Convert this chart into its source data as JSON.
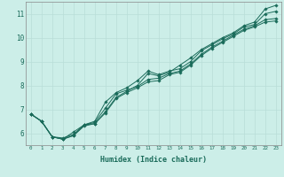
{
  "xlabel": "Humidex (Indice chaleur)",
  "bg_color": "#cceee8",
  "line_color": "#1a6b5a",
  "grid_color": "#b8ddd8",
  "xlim": [
    -0.5,
    23.5
  ],
  "ylim": [
    5.5,
    11.5
  ],
  "xticks": [
    0,
    1,
    2,
    3,
    4,
    5,
    6,
    7,
    8,
    9,
    10,
    11,
    12,
    13,
    14,
    15,
    16,
    17,
    18,
    19,
    20,
    21,
    22,
    23
  ],
  "yticks": [
    6,
    7,
    8,
    9,
    10,
    11
  ],
  "lines": [
    [
      6.8,
      6.5,
      5.85,
      5.75,
      5.9,
      6.35,
      6.4,
      6.9,
      7.5,
      7.75,
      8.0,
      8.5,
      8.4,
      8.55,
      8.85,
      9.15,
      9.5,
      9.75,
      10.0,
      10.2,
      10.5,
      10.65,
      11.2,
      11.35
    ],
    [
      6.8,
      6.5,
      5.85,
      5.75,
      6.05,
      6.35,
      6.5,
      7.3,
      7.7,
      7.9,
      8.2,
      8.6,
      8.45,
      8.6,
      8.7,
      9.0,
      9.45,
      9.7,
      9.95,
      10.15,
      10.45,
      10.55,
      11.0,
      11.1
    ],
    [
      6.8,
      6.5,
      5.85,
      5.8,
      5.95,
      6.35,
      6.45,
      7.05,
      7.65,
      7.8,
      7.95,
      8.25,
      8.3,
      8.5,
      8.6,
      8.9,
      9.3,
      9.6,
      9.85,
      10.1,
      10.35,
      10.5,
      10.75,
      10.8
    ],
    [
      6.8,
      6.5,
      5.85,
      5.75,
      5.9,
      6.3,
      6.4,
      6.85,
      7.45,
      7.7,
      7.9,
      8.15,
      8.2,
      8.45,
      8.55,
      8.85,
      9.25,
      9.55,
      9.8,
      10.05,
      10.3,
      10.45,
      10.65,
      10.7
    ]
  ]
}
